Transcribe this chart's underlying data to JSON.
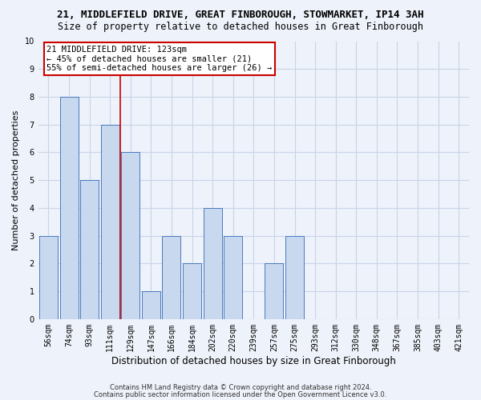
{
  "title_line1": "21, MIDDLEFIELD DRIVE, GREAT FINBOROUGH, STOWMARKET, IP14 3AH",
  "title_line2": "Size of property relative to detached houses in Great Finborough",
  "xlabel": "Distribution of detached houses by size in Great Finborough",
  "ylabel": "Number of detached properties",
  "bar_labels": [
    "56sqm",
    "74sqm",
    "93sqm",
    "111sqm",
    "129sqm",
    "147sqm",
    "166sqm",
    "184sqm",
    "202sqm",
    "220sqm",
    "239sqm",
    "257sqm",
    "275sqm",
    "293sqm",
    "312sqm",
    "330sqm",
    "348sqm",
    "367sqm",
    "385sqm",
    "403sqm",
    "421sqm"
  ],
  "bar_values": [
    3,
    8,
    5,
    7,
    6,
    1,
    3,
    2,
    4,
    3,
    0,
    2,
    3,
    0,
    0,
    0,
    0,
    0,
    0,
    0,
    0
  ],
  "ylim": [
    0,
    10
  ],
  "yticks": [
    0,
    1,
    2,
    3,
    4,
    5,
    6,
    7,
    8,
    9,
    10
  ],
  "bar_color": "#c8d8ee",
  "bar_edge_color": "#4a7abf",
  "grid_color": "#c8d4e8",
  "vline_color": "#cc0000",
  "vline_x_index": 3.5,
  "annotation_box_text": "21 MIDDLEFIELD DRIVE: 123sqm\n← 45% of detached houses are smaller (21)\n55% of semi-detached houses are larger (26) →",
  "annotation_box_color": "#cc0000",
  "annotation_box_bg": "#ffffff",
  "footer_line1": "Contains HM Land Registry data © Crown copyright and database right 2024.",
  "footer_line2": "Contains public sector information licensed under the Open Government Licence v3.0.",
  "bg_color": "#eef2fa",
  "title_fontsize": 9,
  "subtitle_fontsize": 8.5,
  "tick_fontsize": 7,
  "ylabel_fontsize": 8,
  "xlabel_fontsize": 8.5,
  "footer_fontsize": 6,
  "ann_fontsize": 7.5
}
